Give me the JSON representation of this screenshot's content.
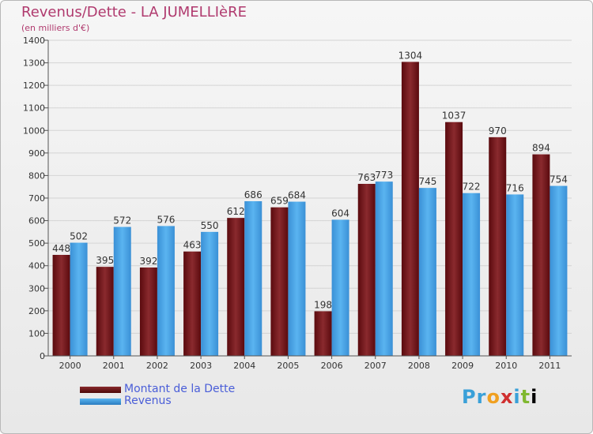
{
  "chart_data": {
    "type": "bar",
    "title": "Revenus/Dette - LA JUMELLIèRE",
    "subtitle": "(en milliers d'€)",
    "categories": [
      "2000",
      "2001",
      "2002",
      "2003",
      "2004",
      "2005",
      "2006",
      "2007",
      "2008",
      "2009",
      "2010",
      "2011"
    ],
    "series": [
      {
        "name": "Montant de la Dette",
        "color": "#7a1a1e",
        "values": [
          448,
          395,
          392,
          463,
          612,
          659,
          198,
          763,
          1304,
          1037,
          970,
          894
        ]
      },
      {
        "name": "Revenus",
        "color": "#4aa6e6",
        "values": [
          502,
          572,
          576,
          550,
          686,
          684,
          604,
          773,
          745,
          722,
          716,
          754
        ]
      }
    ],
    "ylim": [
      0,
      1400
    ],
    "yticks": [
      0,
      100,
      200,
      300,
      400,
      500,
      600,
      700,
      800,
      900,
      1000,
      1100,
      1200,
      1300,
      1400
    ],
    "grid": true,
    "legend_position": "bottom-left"
  },
  "logo": {
    "text": "Proxiti"
  }
}
